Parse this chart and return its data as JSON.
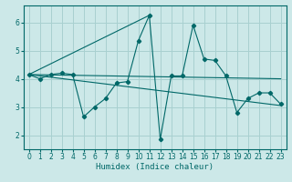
{
  "xlabel": "Humidex (Indice chaleur)",
  "bg_color": "#cce8e8",
  "grid_color": "#a8d0d0",
  "line_color": "#006868",
  "xlim": [
    -0.5,
    23.5
  ],
  "ylim": [
    1.5,
    6.6
  ],
  "yticks": [
    2,
    3,
    4,
    5,
    6
  ],
  "xticks": [
    0,
    1,
    2,
    3,
    4,
    5,
    6,
    7,
    8,
    9,
    10,
    11,
    12,
    13,
    14,
    15,
    16,
    17,
    18,
    19,
    20,
    21,
    22,
    23
  ],
  "main_y": [
    4.15,
    4.0,
    4.15,
    4.2,
    4.15,
    2.65,
    3.0,
    3.3,
    3.85,
    3.9,
    5.35,
    6.25,
    1.85,
    4.1,
    4.1,
    5.9,
    4.7,
    4.65,
    4.1,
    2.8,
    3.3,
    3.5,
    3.5,
    3.1
  ],
  "trend1_x": [
    0,
    23
  ],
  "trend1_y": [
    4.15,
    4.0
  ],
  "trend2_x": [
    0,
    23
  ],
  "trend2_y": [
    4.15,
    3.05
  ],
  "trend3_x": [
    0,
    11
  ],
  "trend3_y": [
    4.15,
    6.25
  ]
}
